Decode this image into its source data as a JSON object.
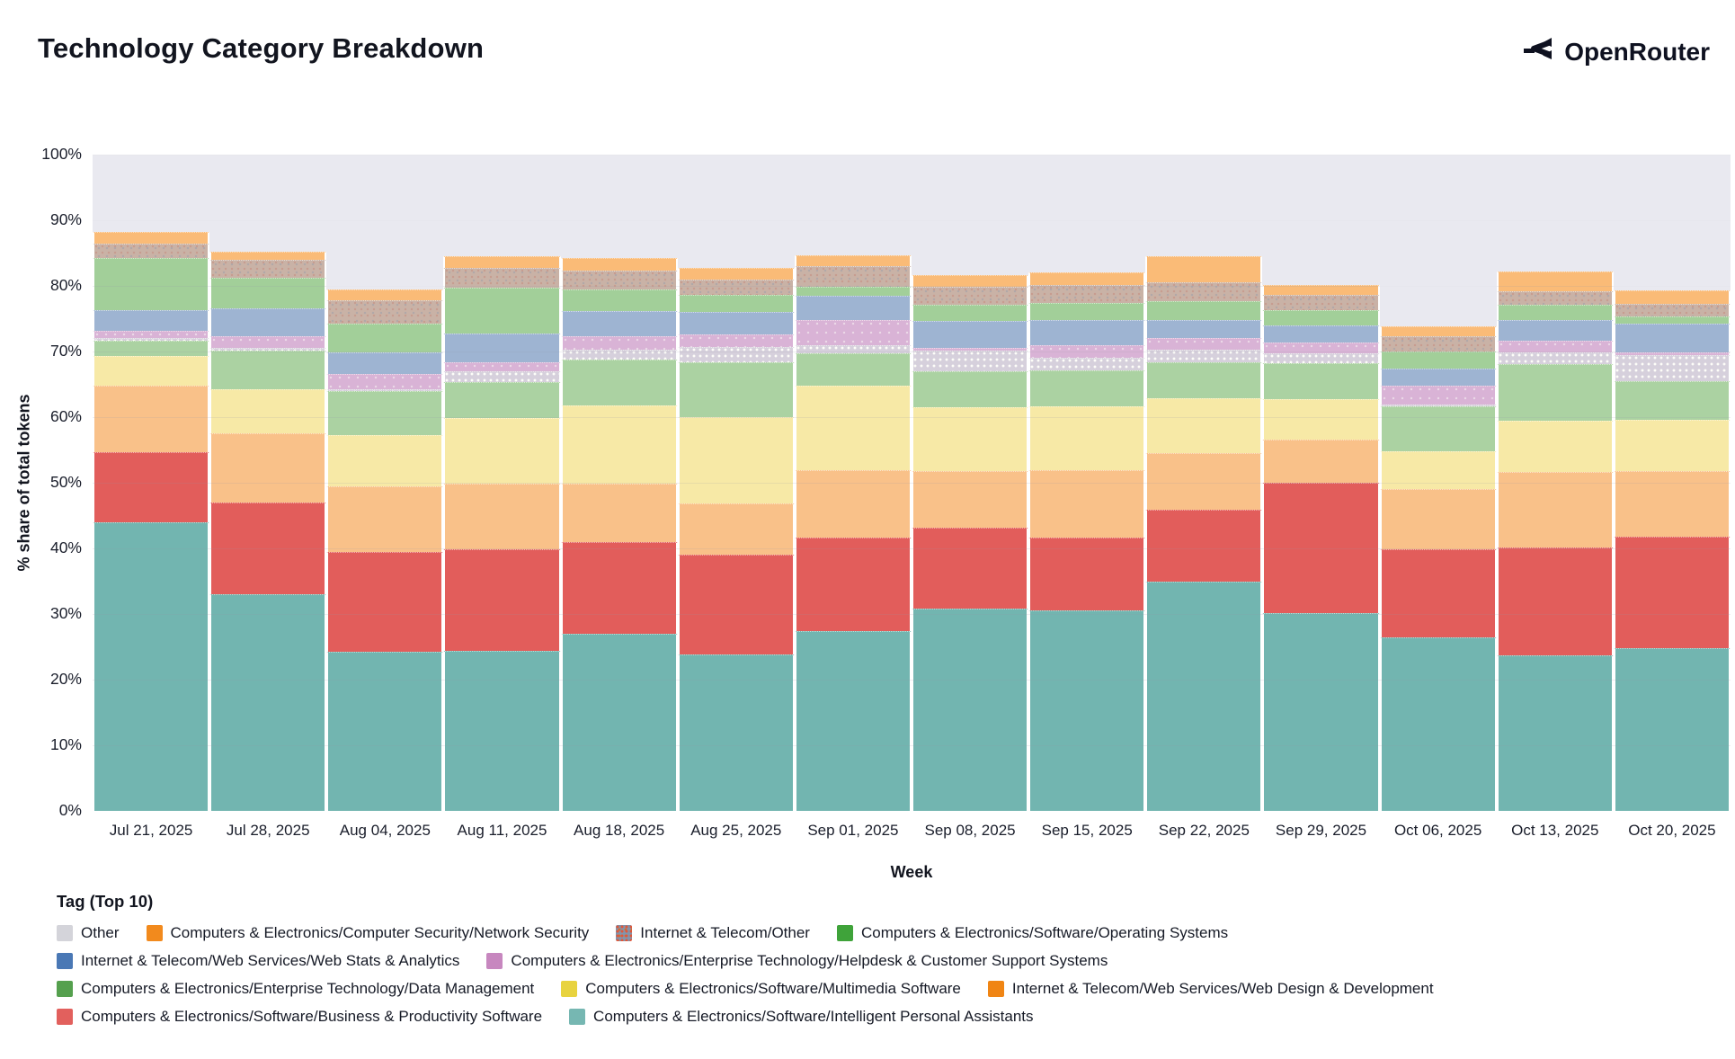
{
  "header": {
    "title": "Technology Category Breakdown",
    "brand": "OpenRouter"
  },
  "chart_data": {
    "type": "bar",
    "stacked": true,
    "title": "Technology Category Breakdown",
    "xlabel": "Week",
    "ylabel": "% share of total tokens",
    "ylim": [
      0,
      100
    ],
    "ytick_step": 10,
    "grid": true,
    "legend_position": "bottom",
    "legend_title": "Tag (Top 10)",
    "categories": [
      "Jul 21, 2025",
      "Jul 28, 2025",
      "Aug 04, 2025",
      "Aug 11, 2025",
      "Aug 18, 2025",
      "Aug 25, 2025",
      "Sep 01, 2025",
      "Sep 08, 2025",
      "Sep 15, 2025",
      "Sep 22, 2025",
      "Sep 29, 2025",
      "Oct 06, 2025",
      "Oct 13, 2025",
      "Oct 20, 2025"
    ],
    "series": [
      {
        "id": "ipa",
        "name": "Computers & Electronics/Software/Intelligent Personal Assistants",
        "bar_color": "#72b5b0",
        "legend_color": "#76b7b2",
        "pattern": "none",
        "values": [
          44.0,
          33.0,
          24.2,
          24.4,
          27.0,
          23.9,
          27.4,
          30.8,
          30.6,
          34.9,
          30.2,
          26.5,
          23.7,
          24.8
        ]
      },
      {
        "id": "bp",
        "name": "Computers & Electronics/Software/Business & Productivity Software",
        "bar_color": "#e25d5b",
        "legend_color": "#e2605d",
        "pattern": "none",
        "values": [
          10.6,
          14.0,
          15.3,
          15.4,
          14.0,
          15.1,
          14.2,
          12.4,
          11.0,
          11.0,
          19.8,
          13.4,
          16.5,
          17.0
        ]
      },
      {
        "id": "wdd",
        "name": "Internet & Telecom/Web Services/Web Design & Development",
        "bar_color": "#f9c189",
        "legend_color": "#f08514",
        "pattern": "none",
        "values": [
          10.2,
          10.5,
          10.0,
          10.1,
          8.8,
          7.8,
          10.3,
          8.6,
          10.3,
          8.6,
          6.6,
          9.1,
          11.5,
          10.0
        ]
      },
      {
        "id": "mm",
        "name": "Computers & Electronics/Software/Multimedia Software",
        "bar_color": "#f7e9a6",
        "legend_color": "#e8d33f",
        "pattern": "none",
        "values": [
          4.5,
          6.8,
          7.8,
          10.0,
          12.0,
          13.2,
          12.9,
          9.7,
          9.7,
          8.4,
          6.1,
          5.8,
          7.8,
          7.8
        ]
      },
      {
        "id": "dm",
        "name": "Computers & Electronics/Enterprise Technology/Data Management",
        "bar_color": "#abd2a2",
        "legend_color": "#55a04e",
        "pattern": "none",
        "values": [
          2.3,
          5.8,
          6.7,
          5.5,
          7.0,
          8.4,
          4.9,
          5.5,
          5.5,
          5.5,
          5.5,
          6.8,
          8.6,
          5.9
        ]
      },
      {
        "id": "other",
        "name": "Other",
        "bar_color": "#d6d0dc",
        "legend_color": "#d4d4da",
        "pattern": "dots-light",
        "values": [
          0.5,
          0.4,
          0.3,
          1.6,
          1.5,
          2.3,
          1.3,
          3.1,
          1.9,
          1.9,
          1.6,
          0.3,
          1.8,
          4.0
        ]
      },
      {
        "id": "hd",
        "name": "Computers & Electronics/Enterprise Technology/Helpdesk & Customer Support Systems",
        "bar_color": "#d9b3d6",
        "legend_color": "#c787bf",
        "pattern": "dots-faint",
        "values": [
          1.0,
          1.8,
          2.3,
          1.4,
          2.0,
          1.9,
          3.8,
          0.5,
          1.9,
          1.8,
          1.6,
          2.9,
          1.7,
          0.4
        ]
      },
      {
        "id": "ws",
        "name": "Internet & Telecom/Web Services/Web Stats & Analytics",
        "bar_color": "#9eb4d2",
        "legend_color": "#4a78b5",
        "pattern": "none",
        "values": [
          3.2,
          4.3,
          3.2,
          4.3,
          3.9,
          3.5,
          3.7,
          4.1,
          3.9,
          2.7,
          2.6,
          2.6,
          3.2,
          4.4
        ]
      },
      {
        "id": "os",
        "name": "Computers & Electronics/Software/Operating Systems",
        "bar_color": "#a2cf99",
        "legend_color": "#3fa33a",
        "pattern": "none",
        "values": [
          8.0,
          4.6,
          4.5,
          7.0,
          3.2,
          2.6,
          1.4,
          2.5,
          2.6,
          2.9,
          2.3,
          2.6,
          2.3,
          1.0
        ]
      },
      {
        "id": "ito",
        "name": "Internet & Telecom/Other",
        "bar_color": "#c9b2a6",
        "legend_color": "#8394ab",
        "pattern": "speckle",
        "values": [
          2.2,
          2.8,
          3.5,
          3.1,
          2.9,
          2.3,
          3.1,
          2.7,
          2.7,
          2.9,
          2.4,
          2.3,
          2.1,
          2.0
        ]
      },
      {
        "id": "ns",
        "name": "Computers & Electronics/Computer Security/Network Security",
        "bar_color": "#fabb77",
        "legend_color": "#f28a1d",
        "pattern": "none",
        "values": [
          1.7,
          1.2,
          1.7,
          1.7,
          2.0,
          1.7,
          1.6,
          1.8,
          2.0,
          3.9,
          1.5,
          1.6,
          3.0,
          2.0
        ]
      }
    ],
    "legend_rows": [
      [
        "other",
        "ns",
        "ito",
        "os"
      ],
      [
        "ws",
        "hd"
      ],
      [
        "dm",
        "mm",
        "wdd"
      ],
      [
        "bp",
        "ipa"
      ]
    ]
  },
  "colors": {
    "plot_bg": "#e9e9f0",
    "grid": "#f7f7fb",
    "accent_teal": "#76b7b2",
    "accent_red": "#e2605d"
  }
}
